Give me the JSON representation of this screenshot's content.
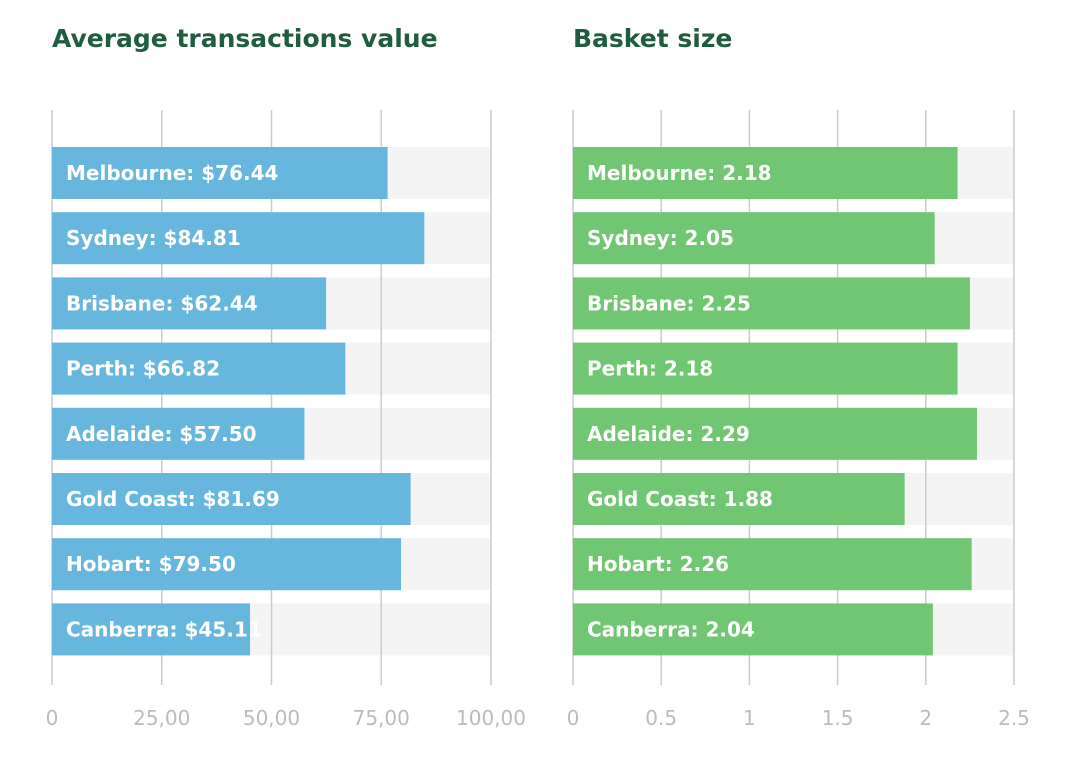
{
  "colors": {
    "title": "#1e5e3e",
    "track": "#f4f4f4",
    "grid": "#cccccc",
    "tick_text": "#b9bcc0",
    "bar_label": "#ffffff"
  },
  "chart_data": [
    {
      "type": "bar",
      "orientation": "horizontal",
      "title": "Average transactions value",
      "categories": [
        "Melbourne",
        "Sydney",
        "Brisbane",
        "Perth",
        "Adelaide",
        "Gold Coast",
        "Hobart",
        "Canberra"
      ],
      "values": [
        76.44,
        84.81,
        62.44,
        66.82,
        57.5,
        81.69,
        79.5,
        45.11
      ],
      "bar_labels": [
        "Melbourne: $76.44",
        "Sydney: $84.81",
        "Brisbane: $62.44",
        "Perth: $66.82",
        "Adelaide: $57.50",
        "Gold Coast: $81.69",
        "Hobart: $79.50",
        "Canberra: $45.11"
      ],
      "xlim": [
        0,
        100
      ],
      "ticks": [
        0,
        25,
        50,
        75,
        100
      ],
      "tick_labels": [
        "0",
        "25,00",
        "50,00",
        "75,00",
        "100,00"
      ],
      "bar_color": "#67b6de",
      "grid": true
    },
    {
      "type": "bar",
      "orientation": "horizontal",
      "title": "Basket size",
      "categories": [
        "Melbourne",
        "Sydney",
        "Brisbane",
        "Perth",
        "Adelaide",
        "Gold Coast",
        "Hobart",
        "Canberra"
      ],
      "values": [
        2.18,
        2.05,
        2.25,
        2.18,
        2.29,
        1.88,
        2.26,
        2.04
      ],
      "bar_labels": [
        "Melbourne: 2.18",
        "Sydney: 2.05",
        "Brisbane: 2.25",
        "Perth: 2.18",
        "Adelaide: 2.29",
        "Gold Coast: 1.88",
        "Hobart: 2.26",
        "Canberra: 2.04"
      ],
      "xlim": [
        0,
        2.5
      ],
      "ticks": [
        0,
        0.5,
        1,
        1.5,
        2,
        2.5
      ],
      "tick_labels": [
        "0",
        "0.5",
        "1",
        "1.5",
        "2",
        "2.5"
      ],
      "bar_color": "#70c672",
      "grid": true
    }
  ]
}
